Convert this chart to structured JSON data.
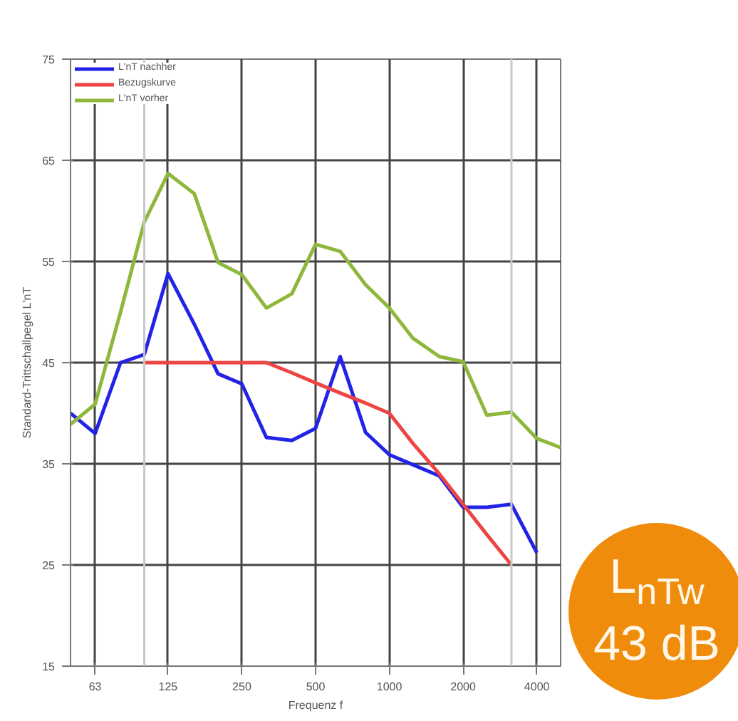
{
  "chart_data": {
    "type": "line",
    "xlabel": "Frequenz f",
    "ylabel": "Standard-Trittschallpegel L'nT",
    "log": "x",
    "xlim": [
      50,
      5000
    ],
    "ylim": [
      15,
      75
    ],
    "xticks": [
      63,
      125,
      250,
      500,
      1000,
      2000,
      4000
    ],
    "yticks": [
      15,
      25,
      35,
      45,
      55,
      65,
      75
    ],
    "grid": true,
    "legend": "top left",
    "x": [
      50,
      63,
      80,
      100,
      125,
      160,
      200,
      250,
      315,
      400,
      500,
      630,
      800,
      1000,
      1250,
      1600,
      2000,
      2500,
      3150,
      4000,
      5000
    ],
    "series": [
      {
        "name": "L'nT nachher",
        "color": "#2323e6",
        "values": [
          40.0,
          38.0,
          45.0,
          45.8,
          53.8,
          48.8,
          43.9,
          42.9,
          37.6,
          37.3,
          38.5,
          45.6,
          38.1,
          35.9,
          34.9,
          33.8,
          30.7,
          30.7,
          31.0,
          26.2,
          null
        ]
      },
      {
        "name": "Bezugskurve",
        "color": "#ee4444",
        "values": [
          null,
          null,
          null,
          45,
          45,
          45,
          45,
          45,
          45,
          44,
          43,
          42,
          41,
          40,
          37,
          34,
          31,
          28,
          25,
          null,
          null
        ]
      },
      {
        "name": "L'nT vorher",
        "color": "#8db83c",
        "values": [
          38.9,
          40.9,
          50.0,
          58.9,
          63.7,
          61.7,
          54.9,
          53.7,
          50.4,
          51.8,
          56.7,
          56.0,
          52.7,
          50.4,
          47.4,
          45.6,
          45.1,
          39.8,
          40.1,
          37.5,
          36.6
        ]
      }
    ],
    "ref_lines": [
      {
        "axis": "x",
        "value": 100,
        "color": "#c8c8c8"
      },
      {
        "axis": "x",
        "value": 3150,
        "color": "#c8c8c8"
      }
    ],
    "annotations": [
      "L$_{nTw}$",
      "43 dB"
    ]
  }
}
